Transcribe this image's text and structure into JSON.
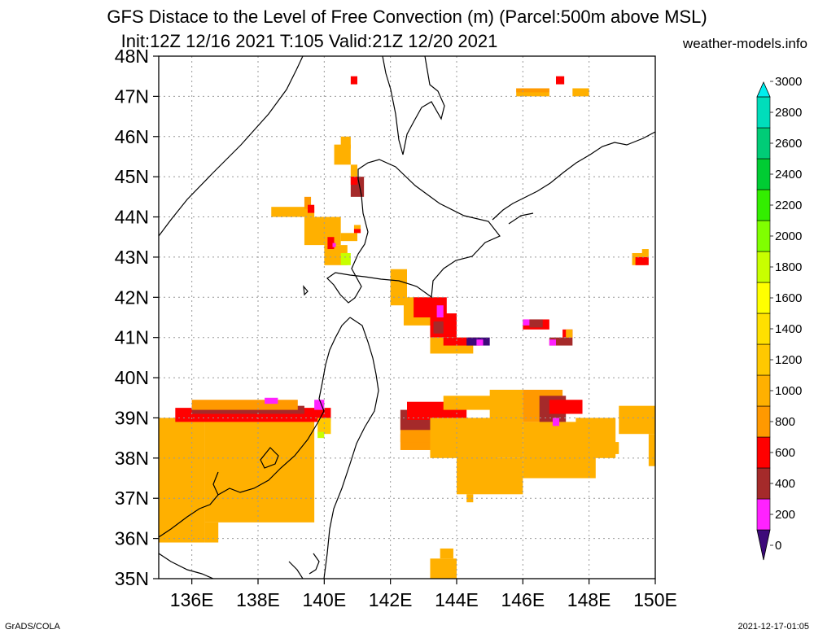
{
  "header": {
    "title_line1": "GFS Distace to the Level of Free Convection (m) (Parcel:500m above MSL)",
    "title_line2": "Init:12Z 12/16 2021 T:105 Valid:21Z 12/20 2021",
    "site": "weather-models.info"
  },
  "footer": {
    "left": "GrADS/COLA",
    "right": "2021-12-17-01:05"
  },
  "map": {
    "lon_range": [
      135,
      150
    ],
    "lat_range": [
      35,
      48
    ],
    "x_ticks": [
      136,
      138,
      140,
      142,
      144,
      146,
      148,
      150
    ],
    "x_tick_labels": [
      "136E",
      "138E",
      "140E",
      "142E",
      "144E",
      "146E",
      "148E",
      "150E"
    ],
    "y_ticks": [
      35,
      36,
      37,
      38,
      39,
      40,
      41,
      42,
      43,
      44,
      45,
      46,
      47,
      48
    ],
    "y_tick_labels": [
      "35N",
      "36N",
      "37N",
      "38N",
      "39N",
      "40N",
      "41N",
      "42N",
      "43N",
      "44N",
      "45N",
      "46N",
      "47N",
      "48N"
    ],
    "grid": true,
    "coastline_color": "#000000"
  },
  "colorbar": {
    "labels": [
      "0",
      "200",
      "400",
      "600",
      "800",
      "1000",
      "1200",
      "1400",
      "1600",
      "1800",
      "2000",
      "2200",
      "2400",
      "2600",
      "2800",
      "3000"
    ],
    "colors": [
      "#3d0a7a",
      "#ff22ff",
      "#a52a2a",
      "#ff0000",
      "#ff9900",
      "#ffb000",
      "#ffc800",
      "#ffe000",
      "#ffff00",
      "#c8ff00",
      "#80ff00",
      "#33ee00",
      "#00cc33",
      "#00cc77",
      "#00ddbb",
      "#00eeee"
    ]
  },
  "field_patches": [
    {
      "c": "#ffb000",
      "b": [
        135.0,
        35.9,
        136.4,
        39.0
      ]
    },
    {
      "c": "#ffb000",
      "b": [
        136.4,
        36.4,
        139.7,
        39.0
      ]
    },
    {
      "c": "#ffb000",
      "b": [
        136.4,
        35.9,
        136.8,
        36.4
      ]
    },
    {
      "c": "#ff0000",
      "b": [
        135.5,
        38.9,
        140.2,
        39.25
      ]
    },
    {
      "c": "#a52a2a",
      "b": [
        136.0,
        39.1,
        139.4,
        39.3
      ]
    },
    {
      "c": "#ff9900",
      "b": [
        136.0,
        39.2,
        139.2,
        39.45
      ]
    },
    {
      "c": "#ff22ff",
      "b": [
        138.2,
        39.35,
        138.6,
        39.5
      ]
    },
    {
      "c": "#ff22ff",
      "b": [
        139.7,
        39.2,
        140.0,
        39.45
      ]
    },
    {
      "c": "#ffc800",
      "b": [
        139.8,
        38.6,
        140.2,
        39.0
      ]
    },
    {
      "c": "#c8ff00",
      "b": [
        139.8,
        38.5,
        140.0,
        38.65
      ]
    },
    {
      "c": "#ffb000",
      "b": [
        143.2,
        34.95,
        144.0,
        35.5
      ]
    },
    {
      "c": "#ffb000",
      "b": [
        143.5,
        35.5,
        143.9,
        35.75
      ]
    },
    {
      "c": "#ff9900",
      "b": [
        142.3,
        38.2,
        143.7,
        38.6
      ]
    },
    {
      "c": "#ff9900",
      "b": [
        142.3,
        38.4,
        143.3,
        39.0
      ]
    },
    {
      "c": "#a52a2a",
      "b": [
        142.3,
        38.7,
        143.4,
        39.2
      ]
    },
    {
      "c": "#ff0000",
      "b": [
        142.5,
        38.95,
        144.3,
        39.4
      ]
    },
    {
      "c": "#ffb000",
      "b": [
        143.2,
        38.0,
        144.5,
        39.0
      ]
    },
    {
      "c": "#ffb000",
      "b": [
        144.0,
        37.9,
        145.2,
        39.0
      ]
    },
    {
      "c": "#ffb000",
      "b": [
        143.6,
        39.2,
        145.2,
        39.55
      ]
    },
    {
      "c": "#ffb000",
      "b": [
        145.0,
        38.0,
        146.0,
        39.7
      ]
    },
    {
      "c": "#ffb000",
      "b": [
        146.0,
        37.5,
        148.2,
        38.9
      ]
    },
    {
      "c": "#ffb000",
      "b": [
        144.0,
        37.1,
        146.0,
        38.0
      ]
    },
    {
      "c": "#ffb000",
      "b": [
        144.3,
        36.9,
        144.5,
        37.1
      ]
    },
    {
      "c": "#ff9900",
      "b": [
        146.0,
        38.9,
        147.2,
        39.7
      ]
    },
    {
      "c": "#a52a2a",
      "b": [
        146.5,
        38.9,
        147.3,
        39.55
      ]
    },
    {
      "c": "#ff0000",
      "b": [
        146.8,
        39.1,
        147.8,
        39.45
      ]
    },
    {
      "c": "#ff22ff",
      "b": [
        146.9,
        38.8,
        147.1,
        39.0
      ]
    },
    {
      "c": "#ffb000",
      "b": [
        147.6,
        38.0,
        148.8,
        39.0
      ]
    },
    {
      "c": "#ffb000",
      "b": [
        148.9,
        38.6,
        150.0,
        39.3
      ]
    },
    {
      "c": "#ffb000",
      "b": [
        149.8,
        37.8,
        150.0,
        38.6
      ]
    },
    {
      "c": "#ffb000",
      "b": [
        148.6,
        38.1,
        148.9,
        38.4
      ]
    },
    {
      "c": "#ffb000",
      "b": [
        142.0,
        41.8,
        142.5,
        42.7
      ]
    },
    {
      "c": "#ffb000",
      "b": [
        142.4,
        41.3,
        143.5,
        42.0
      ]
    },
    {
      "c": "#ff0000",
      "b": [
        142.7,
        41.5,
        143.7,
        42.0
      ]
    },
    {
      "c": "#ff0000",
      "b": [
        143.2,
        41.0,
        144.0,
        41.6
      ]
    },
    {
      "c": "#a52a2a",
      "b": [
        143.3,
        41.1,
        143.6,
        41.4
      ]
    },
    {
      "c": "#ff22ff",
      "b": [
        143.4,
        41.5,
        143.6,
        41.8
      ]
    },
    {
      "c": "#ffb000",
      "b": [
        143.2,
        40.6,
        144.5,
        41.0
      ]
    },
    {
      "c": "#ff0000",
      "b": [
        143.6,
        40.8,
        144.7,
        41.0
      ]
    },
    {
      "c": "#3d0a7a",
      "b": [
        144.3,
        40.8,
        145.0,
        41.0
      ]
    },
    {
      "c": "#ff22ff",
      "b": [
        144.6,
        40.8,
        144.8,
        40.95
      ]
    },
    {
      "c": "#ff0000",
      "b": [
        146.0,
        41.2,
        146.8,
        41.45
      ]
    },
    {
      "c": "#ff22ff",
      "b": [
        146.0,
        41.3,
        146.2,
        41.45
      ]
    },
    {
      "c": "#a52a2a",
      "b": [
        146.2,
        41.25,
        146.6,
        41.45
      ]
    },
    {
      "c": "#a52a2a",
      "b": [
        146.8,
        40.8,
        147.5,
        41.0
      ]
    },
    {
      "c": "#ff22ff",
      "b": [
        146.8,
        40.8,
        147.0,
        40.95
      ]
    },
    {
      "c": "#ff0000",
      "b": [
        147.2,
        41.0,
        147.5,
        41.2
      ]
    },
    {
      "c": "#ffb000",
      "b": [
        147.3,
        41.0,
        147.5,
        41.2
      ]
    },
    {
      "c": "#ffb000",
      "b": [
        145.8,
        47.0,
        146.8,
        47.2
      ]
    },
    {
      "c": "#ff9900",
      "b": [
        145.8,
        47.1,
        146.8,
        47.2
      ]
    },
    {
      "c": "#ff0000",
      "b": [
        147.0,
        47.3,
        147.25,
        47.5
      ]
    },
    {
      "c": "#ffb000",
      "b": [
        147.5,
        47.0,
        148.0,
        47.2
      ]
    },
    {
      "c": "#ff0000",
      "b": [
        140.8,
        47.3,
        141.0,
        47.5
      ]
    },
    {
      "c": "#ffb000",
      "b": [
        140.3,
        45.3,
        140.8,
        45.8
      ]
    },
    {
      "c": "#ffb000",
      "b": [
        140.5,
        45.7,
        140.8,
        46.0
      ]
    },
    {
      "c": "#ffb000",
      "b": [
        140.8,
        45.0,
        141.0,
        45.3
      ]
    },
    {
      "c": "#a52a2a",
      "b": [
        140.8,
        44.5,
        141.2,
        45.0
      ]
    },
    {
      "c": "#ff0000",
      "b": [
        140.8,
        44.8,
        141.0,
        45.0
      ]
    },
    {
      "c": "#ffb000",
      "b": [
        138.4,
        44.0,
        139.7,
        44.25
      ]
    },
    {
      "c": "#ff9900",
      "b": [
        139.4,
        44.2,
        139.6,
        44.5
      ]
    },
    {
      "c": "#ff0000",
      "b": [
        139.5,
        44.1,
        139.7,
        44.3
      ]
    },
    {
      "c": "#ffb000",
      "b": [
        139.4,
        43.3,
        140.5,
        44.0
      ]
    },
    {
      "c": "#ffb000",
      "b": [
        140.0,
        42.8,
        140.7,
        43.3
      ]
    },
    {
      "c": "#ffb000",
      "b": [
        140.5,
        43.4,
        141.0,
        43.6
      ]
    },
    {
      "c": "#ff0000",
      "b": [
        140.1,
        43.2,
        140.3,
        43.5
      ]
    },
    {
      "c": "#ff22ff",
      "b": [
        140.25,
        43.25,
        140.35,
        43.35
      ]
    },
    {
      "c": "#c8ff00",
      "b": [
        140.5,
        42.8,
        140.8,
        43.1
      ]
    },
    {
      "c": "#ffb000",
      "b": [
        140.9,
        43.6,
        141.1,
        43.8
      ]
    },
    {
      "c": "#ff0000",
      "b": [
        140.9,
        43.6,
        141.1,
        43.7
      ]
    },
    {
      "c": "#ffb000",
      "b": [
        149.3,
        42.8,
        149.7,
        43.1
      ]
    },
    {
      "c": "#ff0000",
      "b": [
        149.4,
        42.8,
        149.8,
        43.0
      ]
    },
    {
      "c": "#ffb000",
      "b": [
        149.6,
        43.0,
        149.8,
        43.2
      ]
    }
  ]
}
